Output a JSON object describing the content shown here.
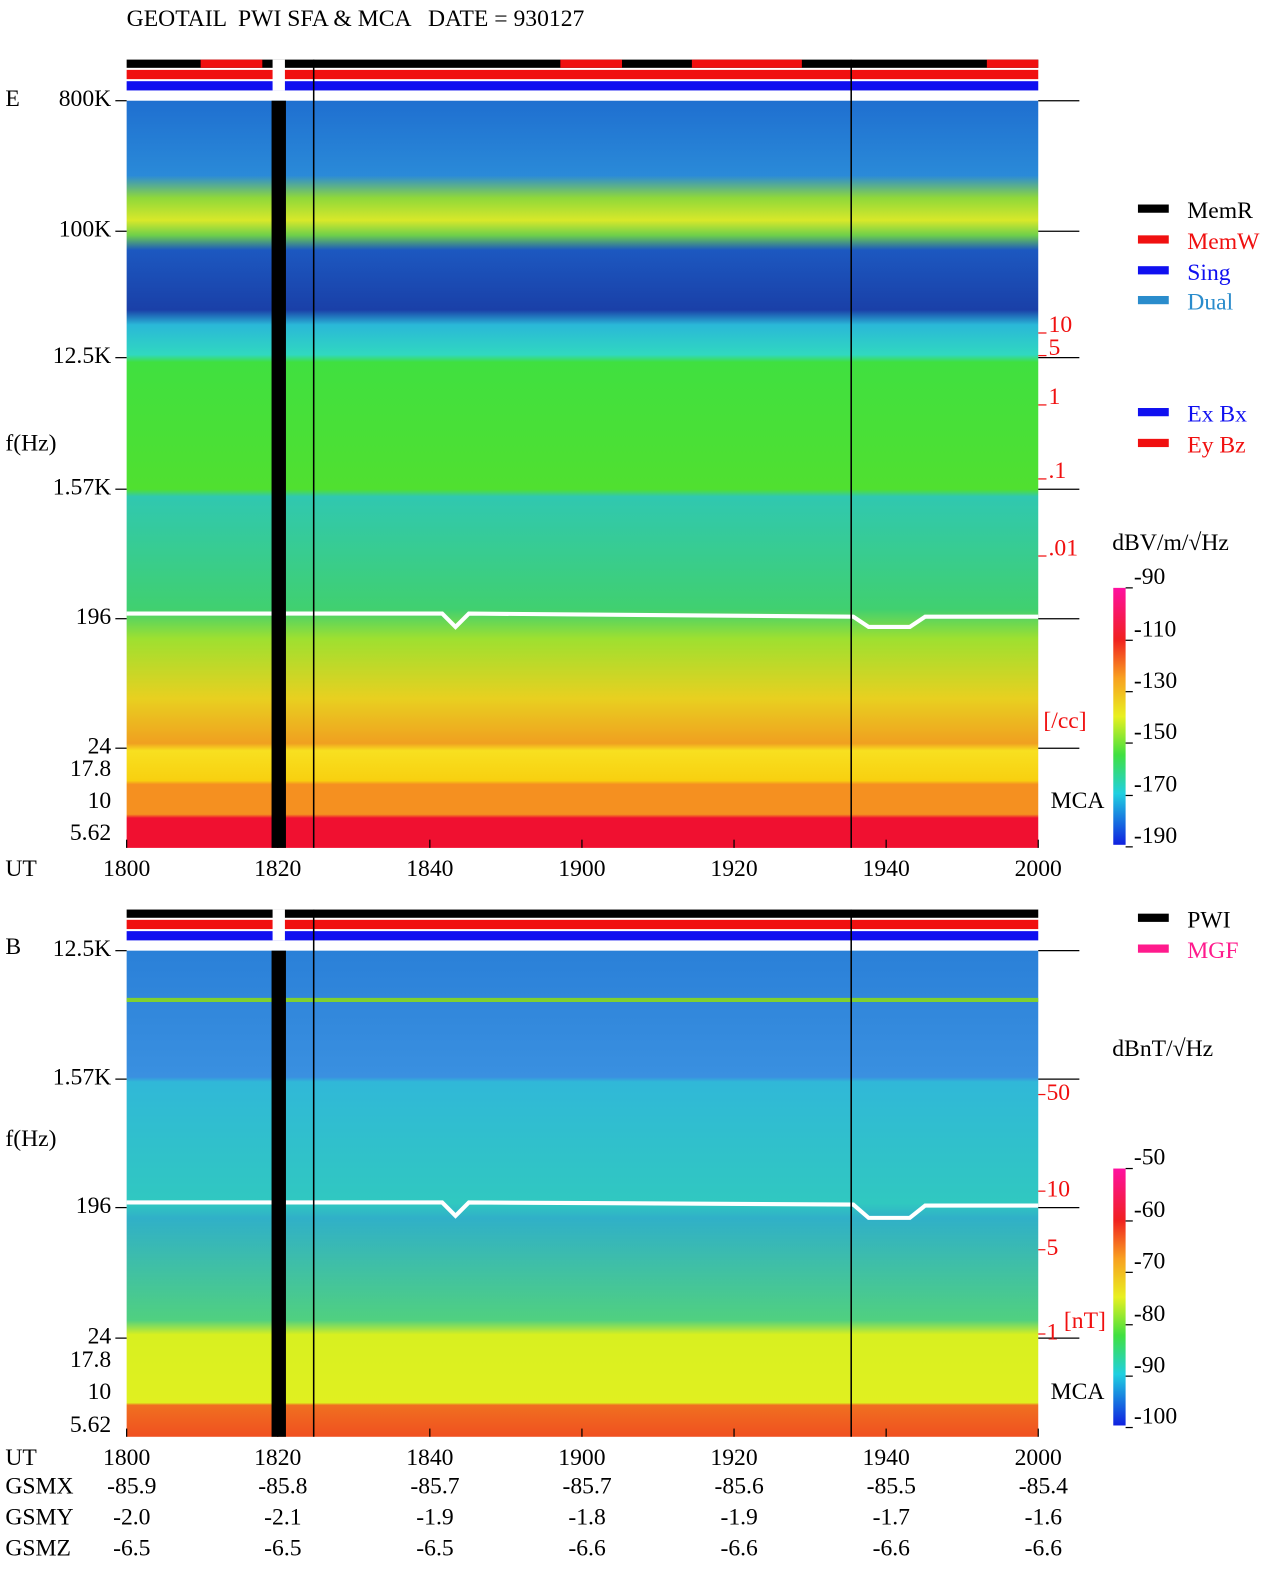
{
  "header": {
    "title": "GEOTAIL  PWI SFA & MCA   DATE = 930127"
  },
  "panel_e": {
    "label": "E",
    "y_axis_label": "f(Hz)",
    "x_axis_label": "UT",
    "freq_ticks": [
      "800K",
      "100K",
      "12.5K",
      "1.57K",
      "196",
      "24",
      "17.8",
      "10",
      "5.62"
    ],
    "time_ticks": [
      "1800",
      "1820",
      "1840",
      "1900",
      "1920",
      "1940",
      "2000"
    ],
    "density_ticks": [
      "10",
      "5",
      "1",
      ".1",
      ".01"
    ],
    "density_unit": "[/cc]",
    "mca_label": "MCA",
    "legend": [
      "MemR",
      "MemW",
      "Sing",
      "Dual"
    ],
    "legend2": [
      "Ex Bx",
      "Ey Bz"
    ],
    "colorbar_unit": "dBV/m/√Hz",
    "colorbar_ticks": [
      "-90",
      "-110",
      "-130",
      "-150",
      "-170",
      "-190"
    ]
  },
  "panel_b": {
    "label": "B",
    "y_axis_label": "f(Hz)",
    "x_axis_label": "UT",
    "freq_ticks": [
      "12.5K",
      "1.57K",
      "196",
      "24",
      "17.8",
      "10",
      "5.62"
    ],
    "time_ticks": [
      "1800",
      "1820",
      "1840",
      "1900",
      "1920",
      "1940",
      "2000"
    ],
    "field_ticks": [
      "50",
      "10",
      "5",
      "1"
    ],
    "field_unit": "[nT]",
    "mca_label": "MCA",
    "legend": [
      "PWI",
      "MGF"
    ],
    "colorbar_unit": "dBnT/√Hz",
    "colorbar_ticks": [
      "-50",
      "-60",
      "-70",
      "-80",
      "-90",
      "-100"
    ]
  },
  "orbit": {
    "rows": [
      {
        "label": "GSMX",
        "values": [
          "-85.9",
          "-85.8",
          "-85.7",
          "-85.7",
          "-85.6",
          "-85.5",
          "-85.4"
        ]
      },
      {
        "label": "GSMY",
        "values": [
          "-2.0",
          "-2.1",
          "-1.9",
          "-1.8",
          "-1.9",
          "-1.7",
          "-1.6"
        ]
      },
      {
        "label": "GSMZ",
        "values": [
          "-6.5",
          "-6.5",
          "-6.5",
          "-6.6",
          "-6.6",
          "-6.6",
          "-6.6"
        ]
      }
    ]
  }
}
